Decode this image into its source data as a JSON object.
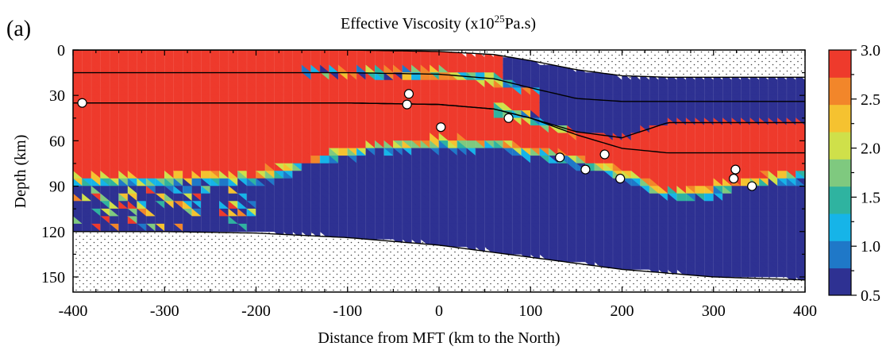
{
  "panel_label": "(a)",
  "chart_data": {
    "type": "heatmap",
    "title": "Effective Viscosity (x10",
    "title_superscript": "25",
    "title_suffix": "Pa.s)",
    "xlabel": "Distance from MFT (km to the North)",
    "ylabel": "Depth (km)",
    "xlim": [
      -400,
      400
    ],
    "ylim": [
      160,
      0
    ],
    "x_ticks": [
      -400,
      -300,
      -200,
      -100,
      0,
      100,
      200,
      300,
      400
    ],
    "y_ticks": [
      0,
      30,
      60,
      90,
      120,
      150
    ],
    "colorbar": {
      "ticks": [
        "0.5",
        "1.0",
        "1.5",
        "2.0",
        "2.5",
        "3.0"
      ],
      "min": 0.5,
      "max": 3.0,
      "colors": [
        "#2e3192",
        "#1f78c8",
        "#16b4e8",
        "#2fb3a0",
        "#7fc97f",
        "#cfe04a",
        "#f5c230",
        "#f2862a",
        "#ee3a2c"
      ]
    },
    "layer_boundaries": [
      {
        "x": [
          -400,
          -200,
          -100,
          0,
          60,
          100,
          150,
          200,
          250,
          300,
          400
        ],
        "depth": [
          0,
          0,
          0,
          1,
          3,
          7,
          13,
          17,
          18,
          18,
          18
        ]
      },
      {
        "x": [
          -400,
          -200,
          -100,
          0,
          60,
          100,
          150,
          200,
          250,
          300,
          400
        ],
        "depth": [
          15,
          15,
          15,
          16,
          19,
          25,
          32,
          34,
          34,
          34,
          34
        ]
      },
      {
        "x": [
          -400,
          -200,
          -100,
          0,
          60,
          100,
          150,
          200,
          250,
          300,
          400
        ],
        "depth": [
          35,
          35,
          35,
          36,
          39,
          45,
          54,
          58,
          48,
          48,
          48
        ]
      },
      {
        "x": [
          -400,
          -200,
          -100,
          0,
          60,
          100,
          150,
          200,
          250,
          300,
          400
        ],
        "depth": [
          35,
          35,
          35,
          36,
          39,
          45,
          56,
          65,
          68,
          68,
          68
        ]
      },
      {
        "x": [
          -400,
          -300,
          -200,
          -100,
          0,
          100,
          200,
          300,
          400
        ],
        "depth": [
          120,
          120,
          121,
          124,
          129,
          137,
          145,
          150,
          152
        ]
      }
    ],
    "earthquakes": [
      {
        "x": -390,
        "depth": 35
      },
      {
        "x": -33,
        "depth": 29
      },
      {
        "x": -35,
        "depth": 36
      },
      {
        "x": 2,
        "depth": 51
      },
      {
        "x": 76,
        "depth": 45
      },
      {
        "x": 132,
        "depth": 71
      },
      {
        "x": 160,
        "depth": 79
      },
      {
        "x": 181,
        "depth": 69
      },
      {
        "x": 198,
        "depth": 85
      },
      {
        "x": 322,
        "depth": 85
      },
      {
        "x": 324,
        "depth": 79
      },
      {
        "x": 342,
        "depth": 90
      }
    ]
  }
}
